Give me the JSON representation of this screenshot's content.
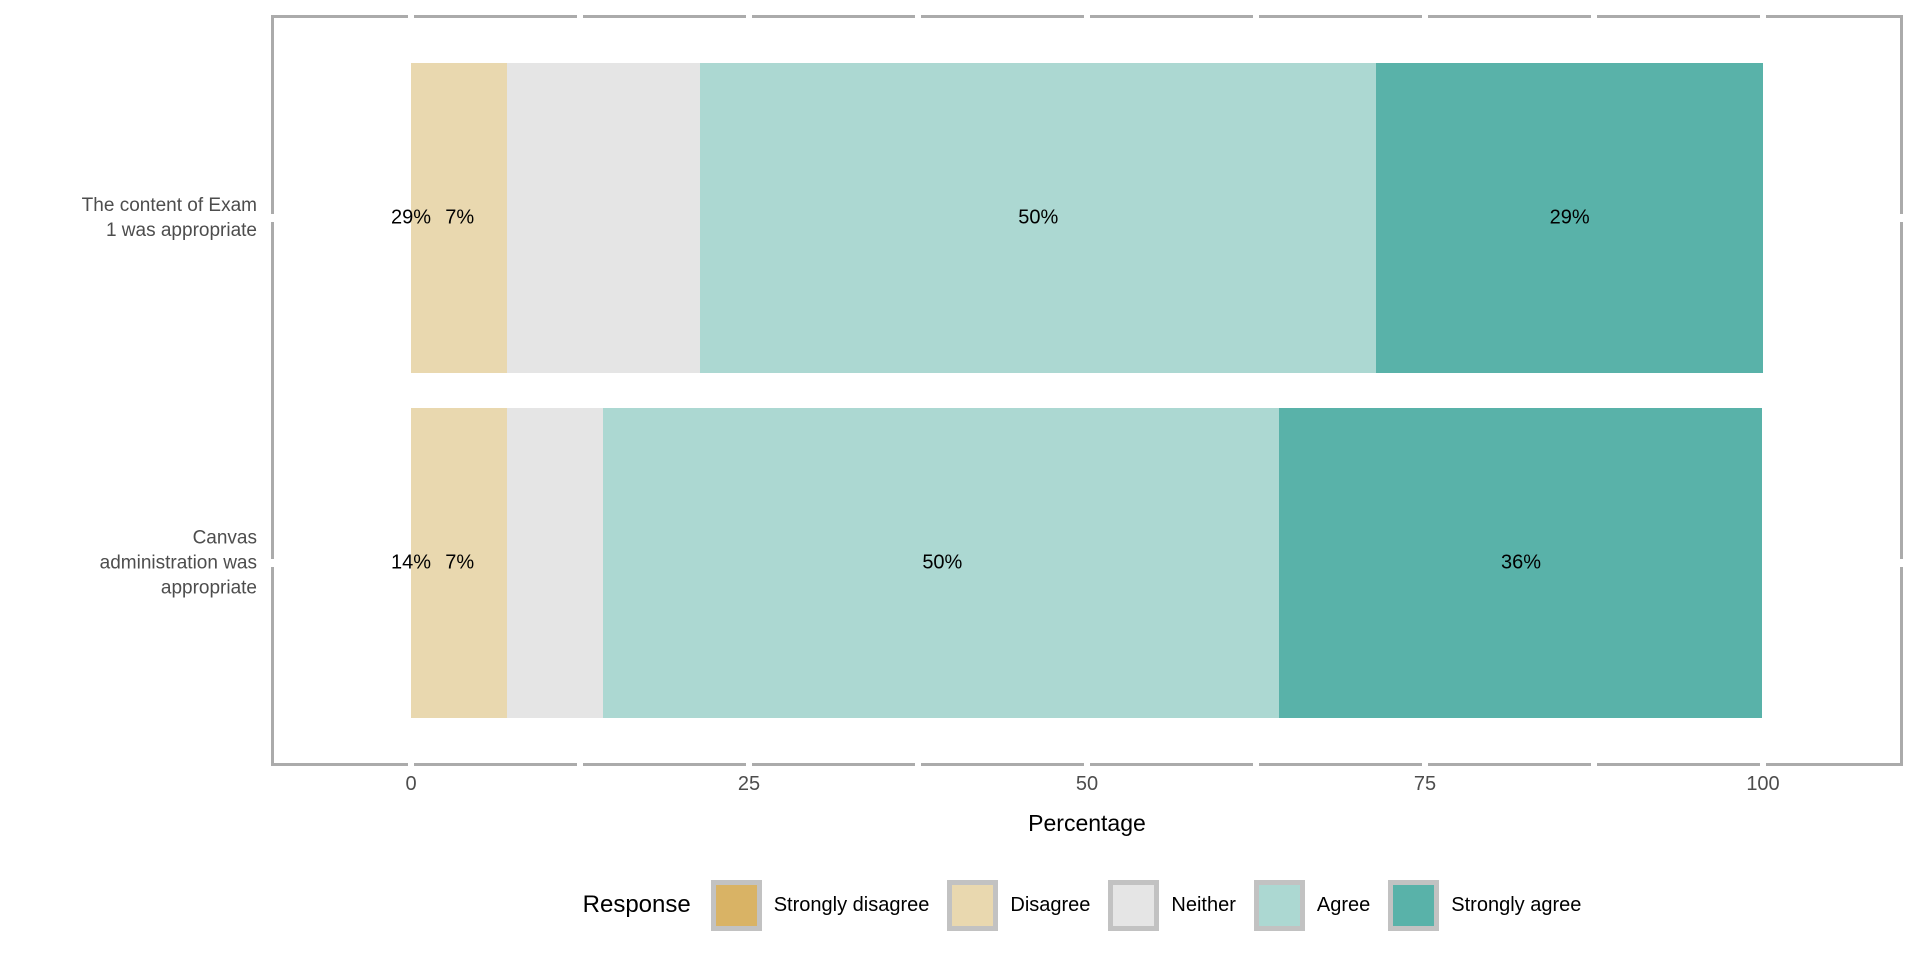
{
  "chart_data": {
    "type": "bar",
    "orientation": "horizontal",
    "stacked": true,
    "title": "",
    "xlabel": "Percentage",
    "xlim": [
      0,
      100
    ],
    "xticks": [
      0,
      25,
      50,
      75,
      100
    ],
    "x_minor_tick_step": 12.5,
    "grid": "white tick gaps cut through gray panel border",
    "legend_title": "Response",
    "legend_position": "bottom",
    "categories": [
      "The content of Exam 1 was appropriate",
      "Canvas administration was appropriate"
    ],
    "category_label_lines": [
      [
        "The content of Exam",
        "1 was appropriate"
      ],
      [
        "Canvas",
        "administration was",
        "appropriate"
      ]
    ],
    "series": [
      {
        "name": "Strongly disagree",
        "color": "#D9B365",
        "values": [
          0,
          0
        ]
      },
      {
        "name": "Disagree",
        "color": "#E9D8AF",
        "values": [
          7.1,
          7.1
        ]
      },
      {
        "name": "Neither",
        "color": "#E5E5E5",
        "values": [
          14.3,
          7.1
        ]
      },
      {
        "name": "Agree",
        "color": "#ACD8D2",
        "values": [
          50,
          50
        ]
      },
      {
        "name": "Strongly agree",
        "color": "#59B2A9",
        "values": [
          28.6,
          35.7
        ]
      }
    ],
    "bar_value_labels": [
      [
        {
          "text": "29%",
          "x_pct": 0
        },
        {
          "text": "7%",
          "x_pct": 3.6
        },
        {
          "text": "50%",
          "x_pct": 46.4
        },
        {
          "text": "29%",
          "x_pct": 85.7
        }
      ],
      [
        {
          "text": "14%",
          "x_pct": 0
        },
        {
          "text": "7%",
          "x_pct": 3.6
        },
        {
          "text": "50%",
          "x_pct": 39.3
        },
        {
          "text": "36%",
          "x_pct": 82.1
        }
      ]
    ]
  },
  "colors": {
    "panel_border": "#ABABAB",
    "axis_text": "#4D4D4D",
    "bar_label_text": "#000000",
    "legend_frame": "#C2C2C2",
    "background": "#FFFFFF"
  }
}
